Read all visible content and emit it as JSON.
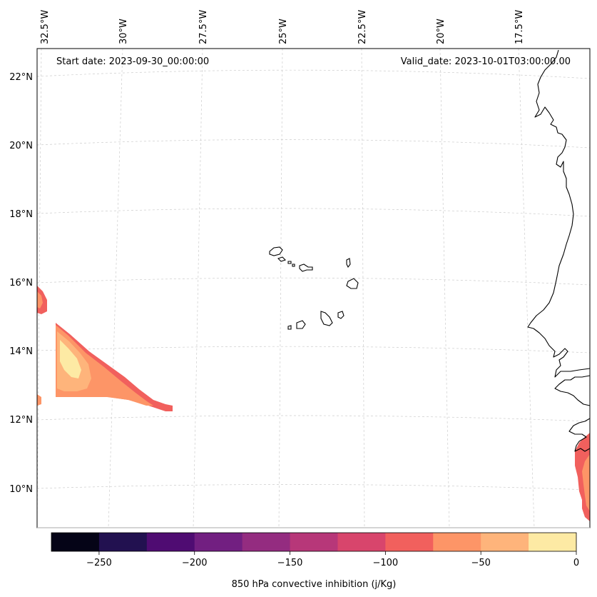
{
  "header": {
    "start_date": "Start date: 2023-09-30_00:00:00",
    "valid_date": "Valid_date: 2023-10-01T03:00:00.00"
  },
  "axes": {
    "lon_labels": [
      "32.5°W",
      "30°W",
      "27.5°W",
      "25°W",
      "22.5°W",
      "20°W",
      "17.5°W"
    ],
    "lat_labels": [
      "22°N",
      "20°N",
      "18°N",
      "16°N",
      "14°N",
      "12°N",
      "10°N"
    ]
  },
  "colorbar": {
    "label": "850 hPa convective inhibition (j/Kg)",
    "tick_labels": [
      "−250",
      "−200",
      "−150",
      "−100",
      "−50",
      "0"
    ],
    "colors": [
      "#050417",
      "#221150",
      "#4f0c72",
      "#721f81",
      "#942c80",
      "#b73779",
      "#d8456c",
      "#f1605d",
      "#fd9567",
      "#feb47b",
      "#fdeaa4"
    ]
  },
  "fill_colors": {
    "level_minus_100": "#f1605d",
    "level_minus_75": "#fd9567",
    "level_minus_50": "#feb47b",
    "level_minus_25": "#fdeaa4"
  }
}
